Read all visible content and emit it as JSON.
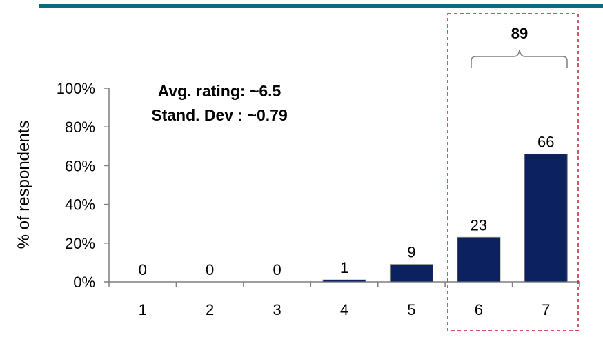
{
  "chart_data": {
    "type": "bar",
    "categories": [
      "1",
      "2",
      "3",
      "4",
      "5",
      "6",
      "7"
    ],
    "values": [
      0,
      0,
      0,
      1,
      9,
      23,
      66
    ],
    "data_labels": [
      "0",
      "0",
      "0",
      "1",
      "9",
      "23",
      "66"
    ],
    "ylabel": "% of respondents",
    "ylim": [
      0,
      100
    ],
    "y_ticks": [
      "0%",
      "20%",
      "40%",
      "60%",
      "80%",
      "100%"
    ],
    "y_tick_values": [
      0,
      20,
      40,
      60,
      80,
      100
    ],
    "grid": false,
    "bar_color": "#0b2160",
    "annotations": {
      "stats": [
        "Avg. rating: ~6.5",
        "Stand. Dev : ~0.79"
      ],
      "highlight_categories": [
        "6",
        "7"
      ],
      "highlight_total": "89",
      "highlight_color": "#cc1f3a"
    }
  }
}
